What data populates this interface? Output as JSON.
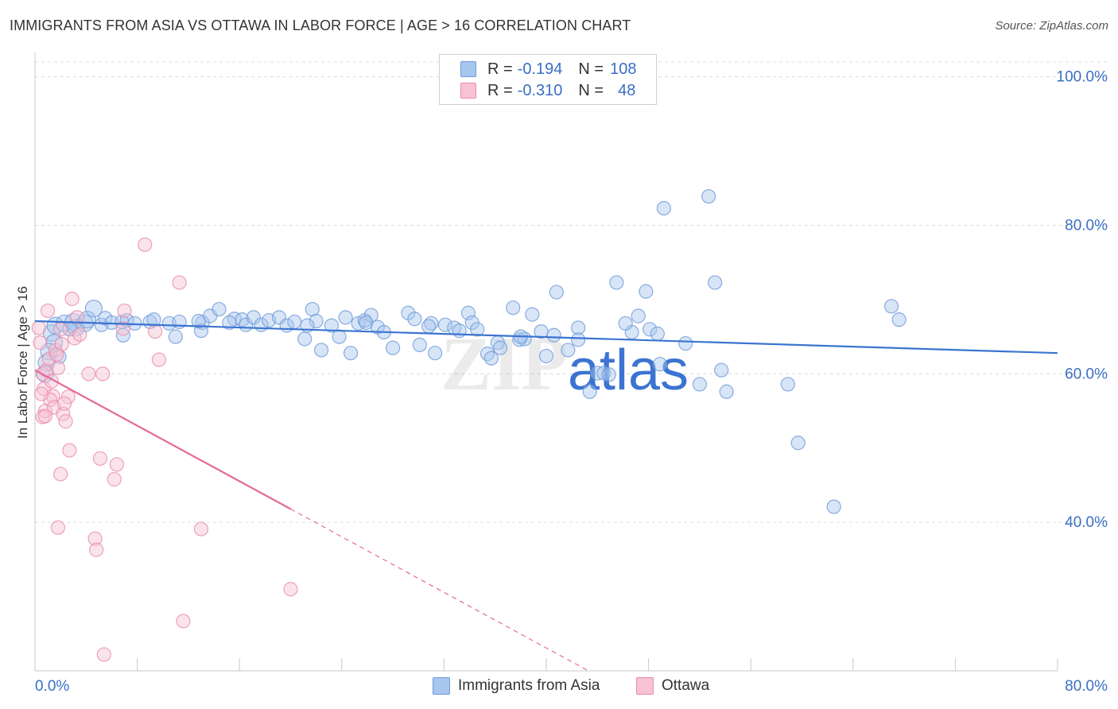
{
  "title": "IMMIGRANTS FROM ASIA VS OTTAWA IN LABOR FORCE | AGE > 16 CORRELATION CHART",
  "source": "Source: ZipAtlas.com",
  "watermark": "ZIPatlas",
  "legend_box": {
    "rows": [
      {
        "r_label": "R =",
        "r_value": "-0.194",
        "n_label": "N =",
        "n_value": "108",
        "color": "#a7c6ee",
        "border": "#6f9ad8"
      },
      {
        "r_label": "R =",
        "r_value": "-0.310",
        "n_label": "N =",
        "n_value": "48",
        "color": "#f7c2d3",
        "border": "#e98cab"
      }
    ]
  },
  "bottom_legend": [
    "Immigrants from Asia",
    "Ottawa"
  ],
  "colors": {
    "blue": "#6f9ad8",
    "blue_fill": "#a7c6ee",
    "blue_line": "#3b74d1",
    "pink": "#e98cab",
    "pink_fill": "#f7c2d3",
    "pink_line": "#e56a93",
    "tick_text": "#3a6fc4"
  },
  "chart_data": {
    "type": "scatter",
    "title": "IMMIGRANTS FROM ASIA VS OTTAWA IN LABOR FORCE | AGE > 16 CORRELATION CHART",
    "xlabel": "",
    "ylabel": "In Labor Force | Age > 16",
    "xlim": [
      0,
      80
    ],
    "ylim": [
      20,
      102
    ],
    "x_tick_labels": [
      "0.0%",
      "80.0%"
    ],
    "y_ticks": [
      40,
      60,
      80,
      100
    ],
    "y_tick_labels": [
      "40.0%",
      "60.0%",
      "80.0%",
      "100.0%"
    ],
    "grid": true,
    "legend_position": "top-center",
    "series": [
      {
        "name": "Immigrants from Asia",
        "points": [
          [
            1.3,
            65.5
          ],
          [
            1.5,
            64.2
          ],
          [
            1.1,
            63.0
          ],
          [
            0.9,
            61.5
          ],
          [
            0.8,
            60.0
          ],
          [
            1.6,
            66.5
          ],
          [
            2.3,
            66.8
          ],
          [
            3.0,
            67.0
          ],
          [
            3.2,
            66.2
          ],
          [
            3.9,
            66.8
          ],
          [
            4.1,
            67.3
          ],
          [
            4.6,
            68.8
          ],
          [
            5.2,
            66.6
          ],
          [
            5.5,
            67.5
          ],
          [
            6.0,
            66.9
          ],
          [
            6.8,
            67.0
          ],
          [
            7.2,
            67.2
          ],
          [
            6.9,
            65.2
          ],
          [
            9.0,
            67.0
          ],
          [
            9.3,
            67.3
          ],
          [
            10.5,
            66.8
          ],
          [
            11.3,
            67.0
          ],
          [
            13.1,
            66.9
          ],
          [
            13.7,
            67.8
          ],
          [
            13.0,
            65.8
          ],
          [
            14.4,
            68.7
          ],
          [
            15.6,
            67.4
          ],
          [
            16.2,
            67.3
          ],
          [
            16.5,
            66.6
          ],
          [
            17.1,
            67.6
          ],
          [
            17.7,
            66.6
          ],
          [
            18.3,
            67.2
          ],
          [
            19.1,
            67.6
          ],
          [
            19.7,
            66.5
          ],
          [
            20.3,
            67.0
          ],
          [
            21.1,
            64.7
          ],
          [
            21.7,
            68.7
          ],
          [
            22.0,
            67.1
          ],
          [
            22.4,
            63.2
          ],
          [
            23.2,
            66.5
          ],
          [
            23.8,
            65.0
          ],
          [
            24.3,
            67.6
          ],
          [
            24.7,
            62.8
          ],
          [
            25.3,
            66.8
          ],
          [
            25.8,
            67.2
          ],
          [
            26.3,
            67.9
          ],
          [
            26.8,
            66.3
          ],
          [
            27.3,
            65.6
          ],
          [
            28.0,
            63.5
          ],
          [
            29.2,
            68.2
          ],
          [
            29.7,
            67.4
          ],
          [
            30.1,
            63.9
          ],
          [
            31.0,
            66.8
          ],
          [
            31.3,
            62.8
          ],
          [
            32.1,
            66.6
          ],
          [
            32.8,
            66.2
          ],
          [
            33.2,
            65.8
          ],
          [
            33.9,
            68.2
          ],
          [
            34.2,
            66.9
          ],
          [
            34.6,
            66.0
          ],
          [
            35.4,
            62.7
          ],
          [
            35.7,
            62.1
          ],
          [
            36.2,
            64.2
          ],
          [
            36.4,
            63.5
          ],
          [
            37.4,
            68.9
          ],
          [
            37.9,
            64.6
          ],
          [
            38.3,
            64.7
          ],
          [
            38.9,
            68.0
          ],
          [
            39.6,
            65.7
          ],
          [
            40.0,
            62.4
          ],
          [
            40.6,
            65.2
          ],
          [
            40.8,
            71.0
          ],
          [
            41.7,
            63.2
          ],
          [
            42.5,
            66.2
          ],
          [
            42.5,
            64.6
          ],
          [
            43.4,
            57.6
          ],
          [
            44.0,
            60.1
          ],
          [
            44.5,
            60.1
          ],
          [
            44.9,
            59.9
          ],
          [
            45.5,
            72.3
          ],
          [
            46.7,
            65.6
          ],
          [
            47.2,
            67.8
          ],
          [
            47.8,
            71.1
          ],
          [
            48.1,
            66.0
          ],
          [
            48.7,
            65.4
          ],
          [
            48.9,
            61.3
          ],
          [
            49.2,
            82.3
          ],
          [
            50.9,
            64.1
          ],
          [
            52.0,
            58.6
          ],
          [
            52.7,
            83.9
          ],
          [
            53.2,
            72.3
          ],
          [
            53.7,
            60.5
          ],
          [
            54.1,
            57.6
          ],
          [
            58.9,
            58.6
          ],
          [
            59.7,
            50.7
          ],
          [
            62.5,
            42.1
          ],
          [
            67.0,
            69.1
          ],
          [
            67.6,
            67.3
          ],
          [
            7.8,
            66.8
          ],
          [
            12.8,
            67.1
          ],
          [
            15.2,
            66.9
          ],
          [
            21.3,
            66.5
          ],
          [
            25.9,
            66.9
          ],
          [
            30.8,
            66.4
          ],
          [
            38.0,
            65.0
          ],
          [
            46.2,
            66.8
          ],
          [
            1.9,
            62.3
          ],
          [
            2.7,
            66.0
          ],
          [
            11.0,
            65.0
          ]
        ]
      },
      {
        "name": "Ottawa",
        "points": [
          [
            0.3,
            66.2
          ],
          [
            0.4,
            64.2
          ],
          [
            0.6,
            60.0
          ],
          [
            0.7,
            58.0
          ],
          [
            0.8,
            55.0
          ],
          [
            0.6,
            54.2
          ],
          [
            0.9,
            60.5
          ],
          [
            1.1,
            62.0
          ],
          [
            1.3,
            59.0
          ],
          [
            1.4,
            57.0
          ],
          [
            1.2,
            56.5
          ],
          [
            1.5,
            55.5
          ],
          [
            1.6,
            63.2
          ],
          [
            1.8,
            60.8
          ],
          [
            2.0,
            66.0
          ],
          [
            2.1,
            64.0
          ],
          [
            2.2,
            54.6
          ],
          [
            2.4,
            53.6
          ],
          [
            2.6,
            56.9
          ],
          [
            2.7,
            49.7
          ],
          [
            2.9,
            70.1
          ],
          [
            3.1,
            64.8
          ],
          [
            3.3,
            67.6
          ],
          [
            3.5,
            65.3
          ],
          [
            4.2,
            60.0
          ],
          [
            4.7,
            37.8
          ],
          [
            4.8,
            36.3
          ],
          [
            5.1,
            48.6
          ],
          [
            5.3,
            60.0
          ],
          [
            5.4,
            22.2
          ],
          [
            6.2,
            45.8
          ],
          [
            6.4,
            47.8
          ],
          [
            6.9,
            66.1
          ],
          [
            7.0,
            68.5
          ],
          [
            8.6,
            77.4
          ],
          [
            9.4,
            65.7
          ],
          [
            9.7,
            61.9
          ],
          [
            11.3,
            72.3
          ],
          [
            11.6,
            26.7
          ],
          [
            13.0,
            39.1
          ],
          [
            20.0,
            31.0
          ],
          [
            1.8,
            39.3
          ],
          [
            2.0,
            46.5
          ],
          [
            1.0,
            68.5
          ],
          [
            0.5,
            57.3
          ],
          [
            1.7,
            62.6
          ],
          [
            2.3,
            56.0
          ],
          [
            0.8,
            54.3
          ]
        ]
      }
    ],
    "trendlines": [
      {
        "series": "Immigrants from Asia",
        "x": [
          0,
          80
        ],
        "y": [
          67.1,
          62.8
        ],
        "style": "solid"
      },
      {
        "series": "Ottawa",
        "x": [
          0,
          20.0
        ],
        "y": [
          60.5,
          41.8
        ],
        "style": "solid"
      },
      {
        "series": "Ottawa",
        "x": [
          20.0,
          43.3
        ],
        "y": [
          41.8,
          20.0
        ],
        "style": "dashed"
      }
    ]
  }
}
